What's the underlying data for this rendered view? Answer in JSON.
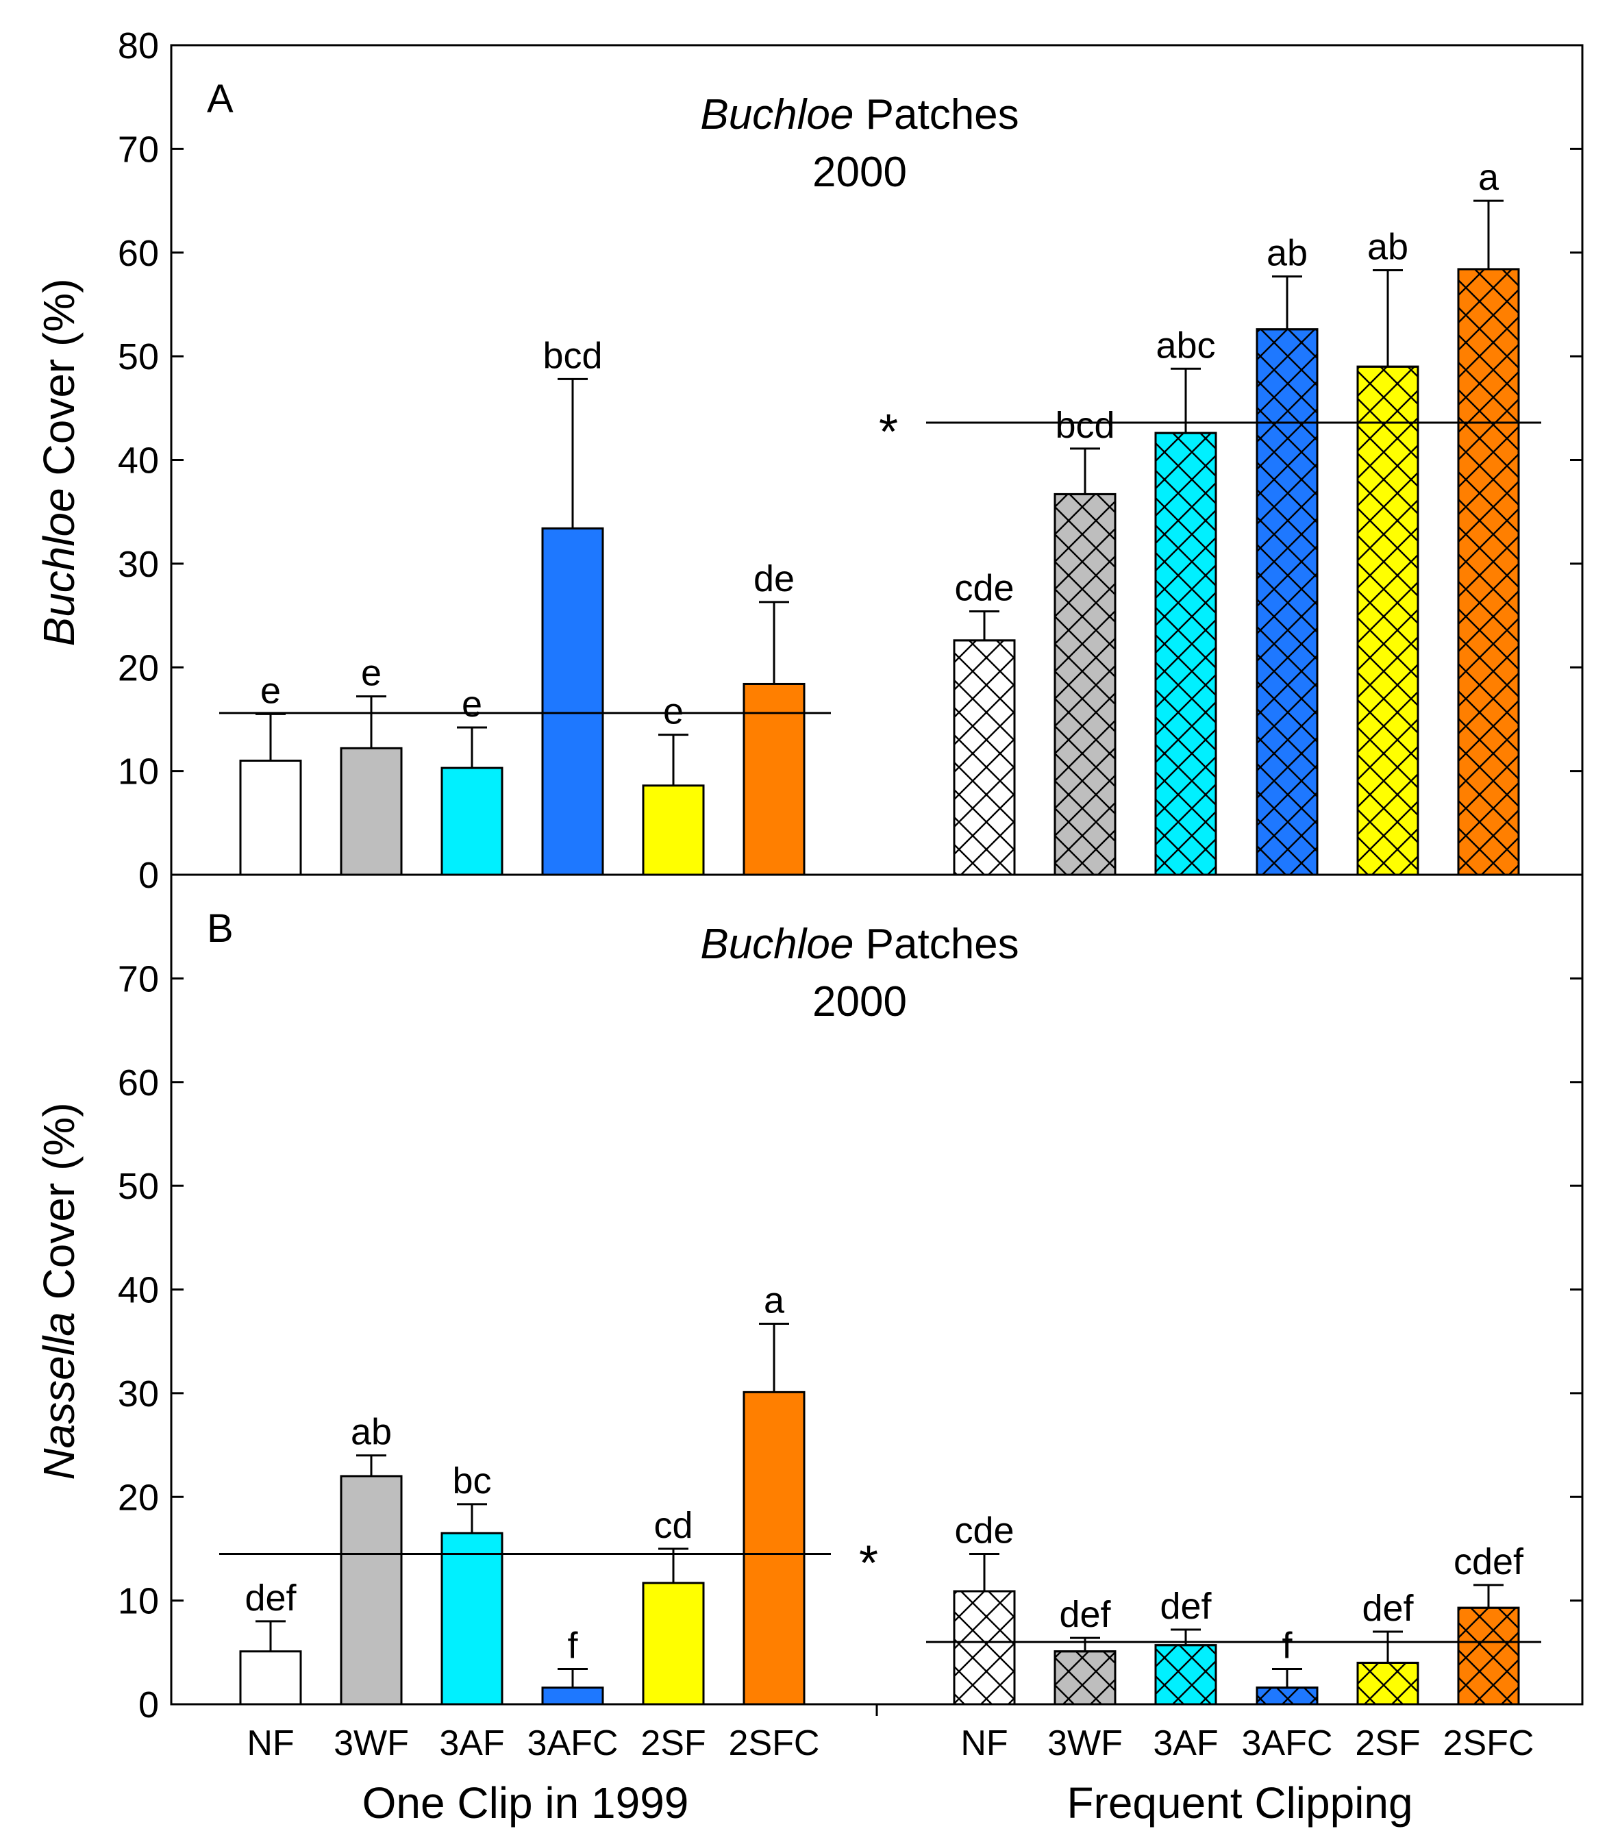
{
  "colors": {
    "NF": "#ffffff",
    "3WF": "#bebebe",
    "3AF": "#00f0ff",
    "3AFC": "#1e78ff",
    "2SF": "#ffff00",
    "2SFC": "#ff7f00"
  },
  "group_labels": {
    "left": "One Clip in 1999",
    "right": "Frequent Clipping"
  },
  "chart_data": [
    {
      "type": "bar",
      "panel_letter": "A",
      "title_italic": "Buchloe",
      "title_rest": " Patches",
      "title_line2": "2000",
      "ylabel_italic": "Buchloe",
      "ylabel_rest": " Cover (%)",
      "ylim": [
        0,
        80
      ],
      "yticks": [
        0,
        10,
        20,
        30,
        40,
        50,
        60,
        70,
        80
      ],
      "tick_labels": [
        "0",
        "10",
        "20",
        "30",
        "40",
        "50",
        "60",
        "70",
        "80"
      ],
      "categories": [
        "NF",
        "3WF",
        "3AF",
        "3AFC",
        "2SF",
        "2SFC"
      ],
      "series": [
        {
          "group": "One Clip in 1999",
          "pattern": "solid",
          "values": [
            11,
            12.2,
            10.3,
            33.4,
            8.6,
            18.4
          ],
          "error": [
            4.5,
            5.0,
            3.9,
            14.4,
            4.9,
            7.9
          ],
          "letters": [
            "e",
            "e",
            "e",
            "bcd",
            "e",
            "de"
          ],
          "mean_line": 15.6,
          "mean_marker": ""
        },
        {
          "group": "Frequent Clipping",
          "pattern": "crosshatch",
          "values": [
            22.6,
            36.7,
            42.6,
            52.6,
            49,
            58.4
          ],
          "error": [
            2.8,
            4.4,
            6.2,
            5.1,
            9.3,
            6.6
          ],
          "letters": [
            "cde",
            "bcd",
            "abc",
            "ab",
            "ab",
            "a"
          ],
          "mean_line": 43.6,
          "mean_marker": "*"
        }
      ]
    },
    {
      "type": "bar",
      "panel_letter": "B",
      "title_italic": "Buchloe",
      "title_rest": " Patches",
      "title_line2": "2000",
      "ylabel_italic": "Nassella",
      "ylabel_rest": " Cover (%)",
      "ylim": [
        0,
        80
      ],
      "yticks": [
        0,
        10,
        20,
        30,
        40,
        50,
        60,
        70
      ],
      "tick_labels": [
        "0",
        "10",
        "20",
        "30",
        "40",
        "50",
        "60",
        "70"
      ],
      "categories": [
        "NF",
        "3WF",
        "3AF",
        "3AFC",
        "2SF",
        "2SFC"
      ],
      "series": [
        {
          "group": "One Clip in 1999",
          "pattern": "solid",
          "values": [
            5.1,
            22,
            16.5,
            1.6,
            11.7,
            30.1
          ],
          "error": [
            2.9,
            2.0,
            2.8,
            1.8,
            3.3,
            6.6
          ],
          "letters": [
            "def",
            "ab",
            "bc",
            "f",
            "cd",
            "a"
          ],
          "mean_line": 14.5,
          "mean_marker": "*"
        },
        {
          "group": "Frequent Clipping",
          "pattern": "crosshatch",
          "values": [
            10.9,
            5.1,
            5.7,
            1.6,
            4,
            9.3
          ],
          "error": [
            3.6,
            1.3,
            1.5,
            1.8,
            3.0,
            2.2
          ],
          "letters": [
            "cde",
            "def",
            "def",
            "f",
            "def",
            "cdef"
          ],
          "mean_line": 6,
          "mean_marker": ""
        }
      ]
    }
  ]
}
